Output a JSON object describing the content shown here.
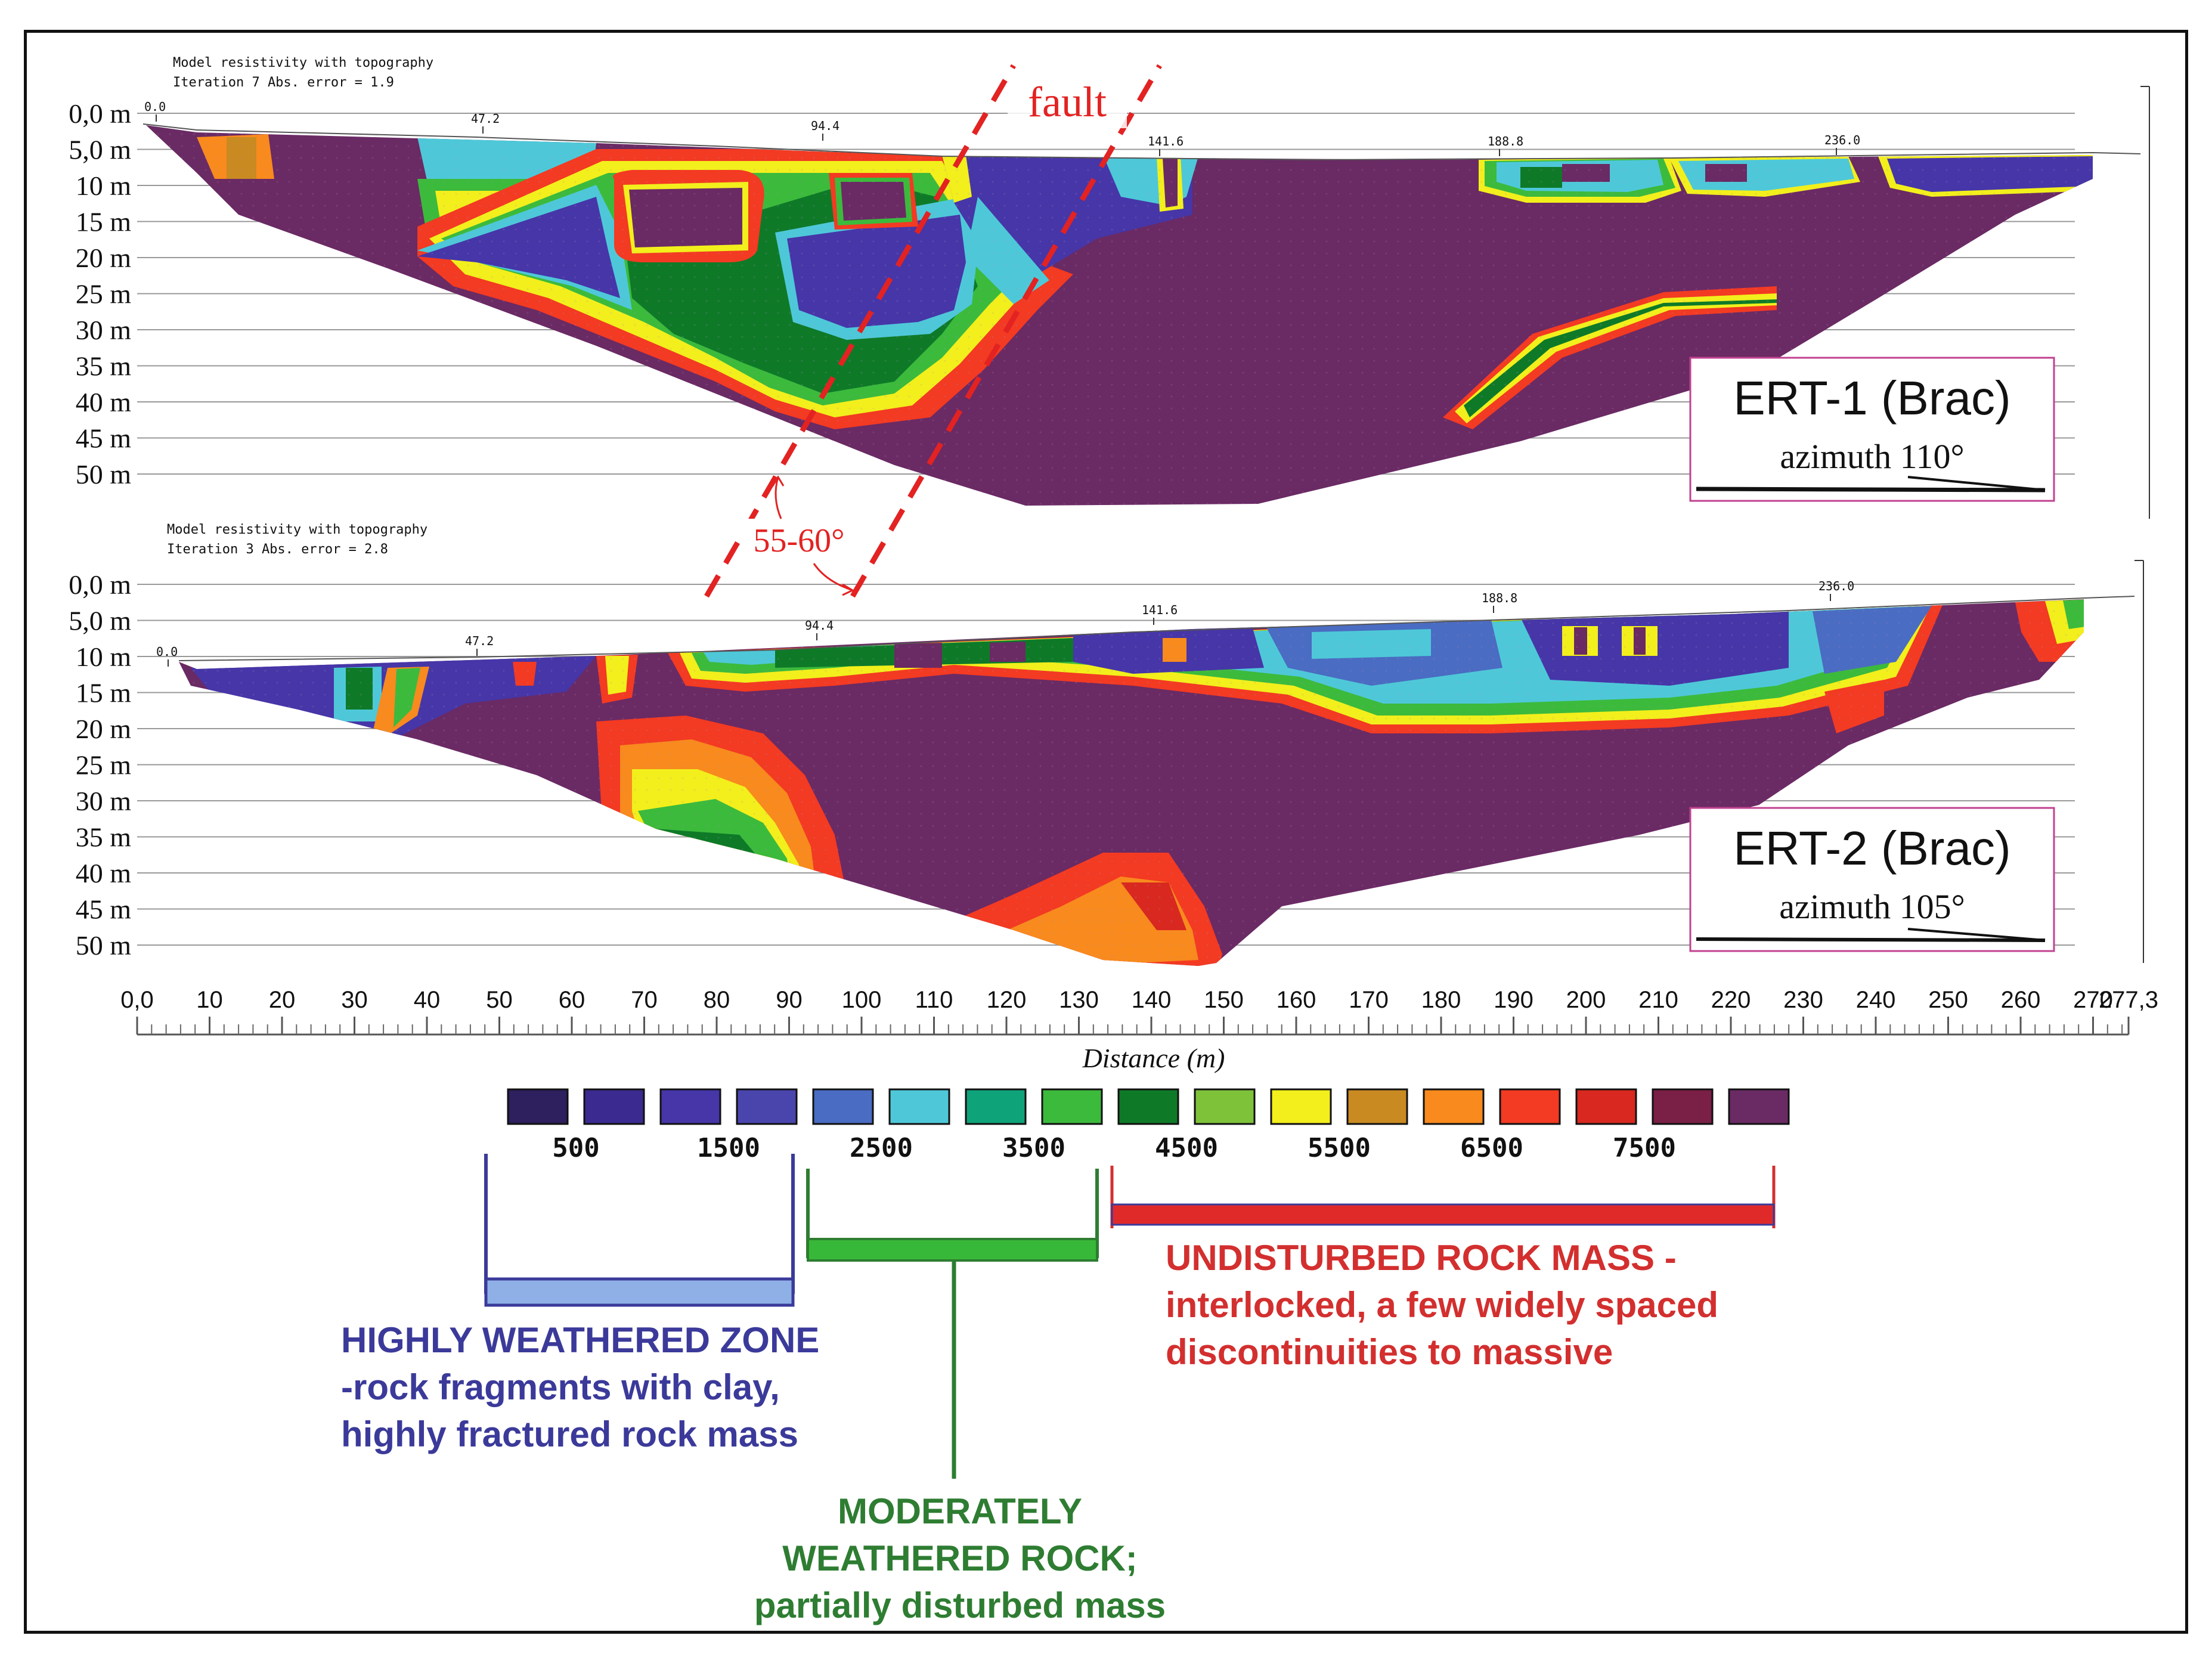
{
  "ert1": {
    "header_line1": "Model resistivity with topography",
    "header_line2": "Iteration 7 Abs. error = 1.9",
    "depth_labels": [
      "0,0 m",
      "5,0 m",
      "10 m",
      "15 m",
      "20 m",
      "25 m",
      "30 m",
      "35 m",
      "40 m",
      "45 m",
      "50 m"
    ],
    "topo_labels": [
      "0.0",
      "47.2",
      "94.4",
      "141.6",
      "188.8",
      "236.0"
    ],
    "title": "ERT-1 (Brac)",
    "azimuth": "azimuth 110°"
  },
  "ert2": {
    "header_line1": "Model resistivity with topography",
    "header_line2": "Iteration 3 Abs. error = 2.8",
    "depth_labels": [
      "0,0 m",
      "5,0 m",
      "10 m",
      "15 m",
      "20 m",
      "25 m",
      "30 m",
      "35 m",
      "40 m",
      "45 m",
      "50 m"
    ],
    "topo_labels": [
      "0.0",
      "47.2",
      "94.4",
      "141.6",
      "188.8",
      "236.0"
    ],
    "title": "ERT-2 (Brac)",
    "azimuth": "azimuth 105°"
  },
  "annotations": {
    "fault": "fault",
    "dip": "55-60°"
  },
  "distance_axis": {
    "ticks": [
      "0,0",
      "10",
      "20",
      "30",
      "40",
      "50",
      "60",
      "70",
      "80",
      "90",
      "100",
      "110",
      "120",
      "130",
      "140",
      "150",
      "160",
      "170",
      "180",
      "190",
      "200",
      "210",
      "220",
      "230",
      "240",
      "250",
      "260",
      "270",
      "277,3"
    ],
    "label": "Distance (m)"
  },
  "colorbar": {
    "colors": [
      "#2e1f5e",
      "#3b2a90",
      "#4636a8",
      "#4a45ad",
      "#4a6cc2",
      "#4ec8d8",
      "#0fa37a",
      "#3cba3c",
      "#0e7a28",
      "#7ec23a",
      "#f2ef1c",
      "#c98a22",
      "#f88a1e",
      "#f33a22",
      "#d8281f",
      "#7a1f46",
      "#6a2a64"
    ],
    "labels": [
      "500",
      "1500",
      "2500",
      "3500",
      "4500",
      "5500",
      "6500",
      "7500"
    ]
  },
  "zones": {
    "highly_weathered": [
      "HIGHLY WEATHERED ZONE",
      "-rock fragments with clay,",
      "highly fractured rock mass"
    ],
    "moderately_weathered": [
      "MODERATELY",
      "WEATHERED ROCK;",
      "partially disturbed mass"
    ],
    "undisturbed": [
      "UNDISTURBED ROCK MASS -",
      "interlocked, a few widely spaced",
      "discontinuities to massive"
    ],
    "colors": {
      "blue": "#3b3a9a",
      "green": "#2e7d32",
      "red": "#d32f2f"
    }
  }
}
